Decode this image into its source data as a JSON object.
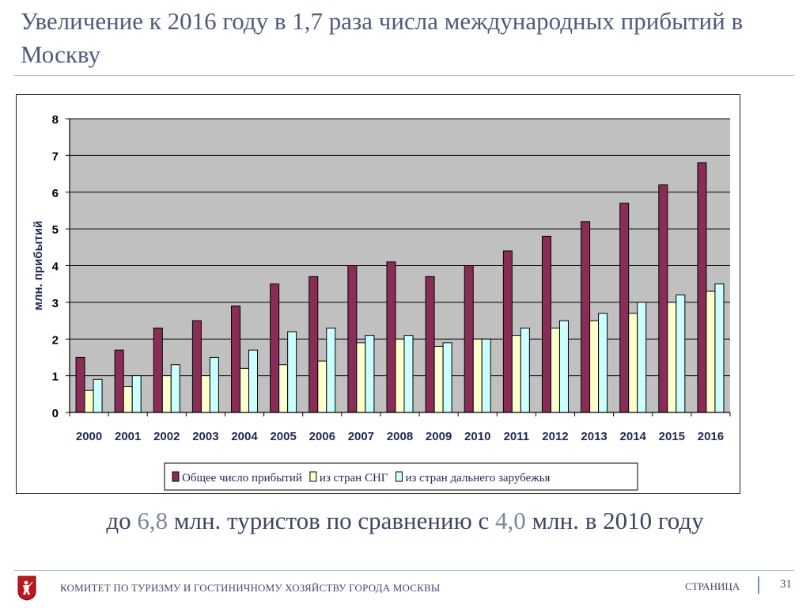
{
  "slide": {
    "title": "Увеличение к 2016 году в 1,7 раза числа международных прибытий в Москву",
    "subtitle_parts": [
      "до ",
      "6,8",
      " млн. туристов по сравнению с ",
      "4,0",
      " млн. в 2010 году"
    ]
  },
  "footer": {
    "org": "КОМИТЕТ ПО ТУРИЗМУ И ГОСТИНИЧНОМУ ХОЗЯЙСТВУ ГОРОДА МОСКВЫ",
    "page_label": "СТРАНИЦА",
    "page_number": "31"
  },
  "colors": {
    "total": "#8a2c58",
    "cis": "#ffffcc",
    "far": "#ccffff",
    "plot_bg": "#c0c0c0",
    "title": "#4f5a7a",
    "emblem_red": "#c0161e"
  },
  "chart_data": {
    "type": "bar",
    "title": "",
    "xlabel": "",
    "ylabel": "млн. прибытий",
    "ylim": [
      0,
      8
    ],
    "yticks": [
      0,
      1,
      2,
      3,
      4,
      5,
      6,
      7,
      8
    ],
    "grid": true,
    "legend_position": "bottom",
    "categories": [
      "2000",
      "2001",
      "2002",
      "2003",
      "2004",
      "2005",
      "2006",
      "2007",
      "2008",
      "2009",
      "2010",
      "2011",
      "2012",
      "2013",
      "2014",
      "2015",
      "2016"
    ],
    "series": [
      {
        "name": "Общее число прибытий",
        "color_key": "total",
        "values": [
          1.5,
          1.7,
          2.3,
          2.5,
          2.9,
          3.5,
          3.7,
          4.0,
          4.1,
          3.7,
          4.0,
          4.4,
          4.8,
          5.2,
          5.7,
          6.2,
          6.8
        ]
      },
      {
        "name": "из стран СНГ",
        "color_key": "cis",
        "values": [
          0.6,
          0.7,
          1.0,
          1.0,
          1.2,
          1.3,
          1.4,
          1.9,
          2.0,
          1.8,
          2.0,
          2.1,
          2.3,
          2.5,
          2.7,
          3.0,
          3.3
        ]
      },
      {
        "name": "из стран дальнего зарубежья",
        "color_key": "far",
        "values": [
          0.9,
          1.0,
          1.3,
          1.5,
          1.7,
          2.2,
          2.3,
          2.1,
          2.1,
          1.9,
          2.0,
          2.3,
          2.5,
          2.7,
          3.0,
          3.2,
          3.5
        ]
      }
    ]
  }
}
